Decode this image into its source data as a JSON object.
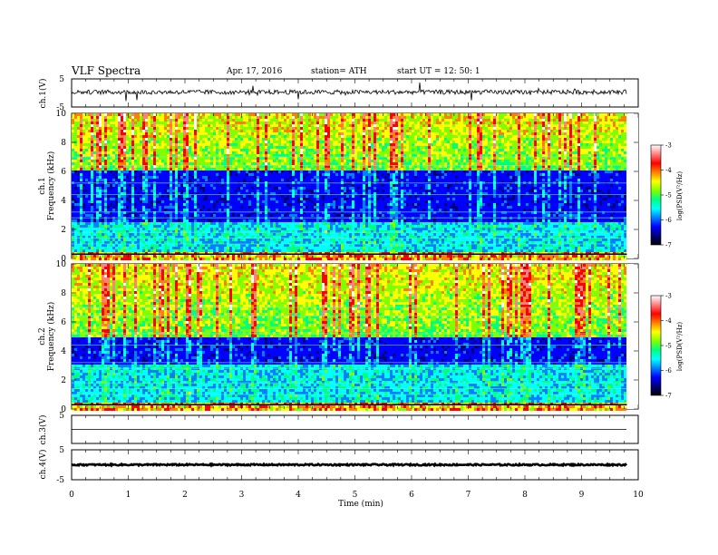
{
  "header": {
    "title": "VLF  Spectra",
    "date": "Apr. 17, 2016",
    "station": "station= ATH",
    "start_ut": "start  UT =   12: 50: 1"
  },
  "chart_data": [
    {
      "type": "line",
      "panel": "ch1-waveform",
      "ylabel": "ch.1(V)",
      "ylim": [
        -5,
        5
      ],
      "ytick_labels": [
        "5",
        "-5"
      ],
      "description_level": 0.3
    },
    {
      "type": "heatmap",
      "panel": "ch1-spectrogram",
      "ylabel": "ch.1\nFrequency  (kHz)",
      "ylabel_line1": "ch.1",
      "ylabel_line2": "Frequency  (kHz)",
      "ylim": [
        0,
        10
      ],
      "ytick_labels": [
        "0",
        "2",
        "4",
        "6",
        "8",
        "10"
      ],
      "colorbar": {
        "label": "log(PSD(V²/Hz)",
        "range": [
          -7,
          -3
        ],
        "tick_labels": [
          "-7",
          "-6",
          "-5",
          "-4",
          "-3"
        ],
        "colormap": [
          "#000000",
          "#00007a",
          "#0000ff",
          "#0080ff",
          "#00ffff",
          "#00ff80",
          "#80ff00",
          "#ffff00",
          "#ff8000",
          "#ff0000",
          "#ff8080",
          "#ffffff"
        ]
      },
      "quiet_band_khz": [
        2.5,
        6
      ]
    },
    {
      "type": "heatmap",
      "panel": "ch2-spectrogram",
      "ylabel_line1": "ch.2",
      "ylabel_line2": "Frequency  (kHz)",
      "ylim": [
        0,
        10
      ],
      "ytick_labels": [
        "0",
        "2",
        "4",
        "6",
        "8",
        "10"
      ],
      "colorbar": {
        "label": "log(PSD(V²/Hz)",
        "range": [
          -7,
          -3
        ],
        "tick_labels": [
          "-7",
          "-6",
          "-5",
          "-4",
          "-3"
        ],
        "colormap": [
          "#000000",
          "#00007a",
          "#0000ff",
          "#0080ff",
          "#00ffff",
          "#00ff80",
          "#80ff00",
          "#ffff00",
          "#ff8000",
          "#ff0000",
          "#ff8080",
          "#ffffff"
        ]
      },
      "quiet_band_khz": [
        3,
        5
      ]
    },
    {
      "type": "line",
      "panel": "ch3-waveform",
      "ylabel": "ch.3(V)",
      "ylim": [
        -5,
        5
      ],
      "ytick_labels": [
        "5"
      ],
      "level": 0
    },
    {
      "type": "line",
      "panel": "ch4-waveform",
      "ylabel": "ch.4(V)",
      "ylim": [
        -5,
        5
      ],
      "ytick_labels": [
        "5",
        "-5"
      ],
      "level": 0
    }
  ],
  "x_axis": {
    "label": "Time  (min)",
    "range": [
      0,
      10
    ],
    "data_end": 9.8,
    "tick_labels": [
      "0",
      "1",
      "2",
      "3",
      "4",
      "5",
      "6",
      "7",
      "8",
      "9",
      "10"
    ]
  }
}
